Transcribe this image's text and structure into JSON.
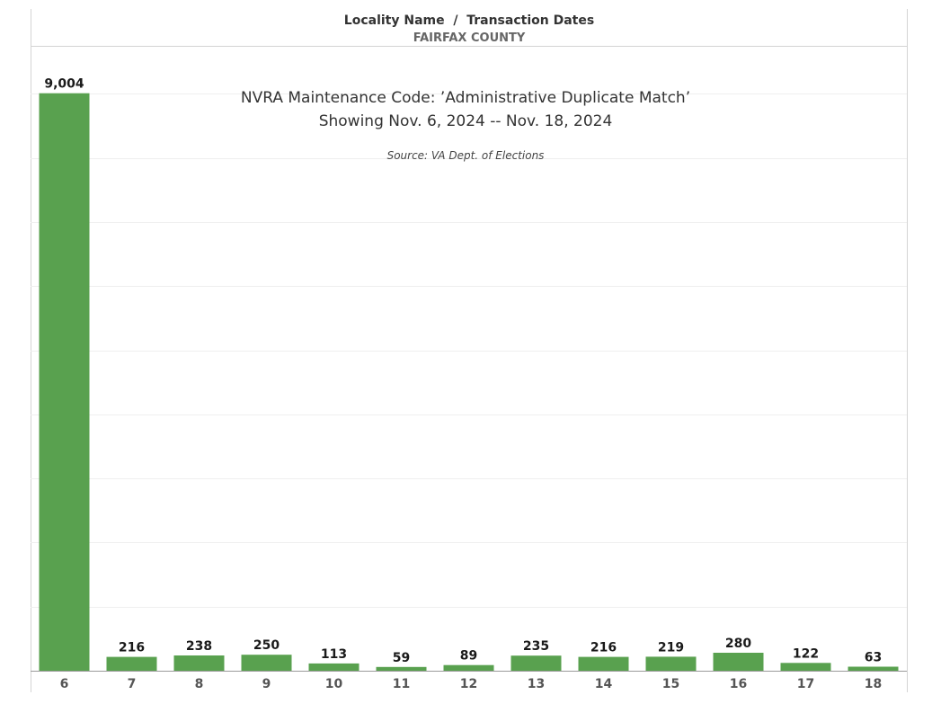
{
  "header": {
    "title": "Locality Name  /  Transaction Dates",
    "subtitle": "FAIRFAX COUNTY"
  },
  "annotation": {
    "line1": "NVRA Maintenance Code: ’Administrative Duplicate Match’",
    "line2": "Showing Nov. 6, 2024 -- Nov. 18, 2024",
    "source": "Source: VA Dept. of Elections"
  },
  "colors": {
    "bar": "#59a14f"
  },
  "chart_data": {
    "type": "bar",
    "title": "NVRA Maintenance Code: ’Administrative Duplicate Match’",
    "categories": [
      "6",
      "7",
      "8",
      "9",
      "10",
      "11",
      "12",
      "13",
      "14",
      "15",
      "16",
      "17",
      "18"
    ],
    "values": [
      9004,
      216,
      238,
      250,
      113,
      59,
      89,
      235,
      216,
      219,
      280,
      122,
      63
    ],
    "value_labels": [
      "9,004",
      "216",
      "238",
      "250",
      "113",
      "59",
      "89",
      "235",
      "216",
      "219",
      "280",
      "122",
      "63"
    ],
    "xlabel": "",
    "ylabel": "",
    "ylim": [
      0,
      9000
    ],
    "grid": true,
    "legend": "none"
  }
}
